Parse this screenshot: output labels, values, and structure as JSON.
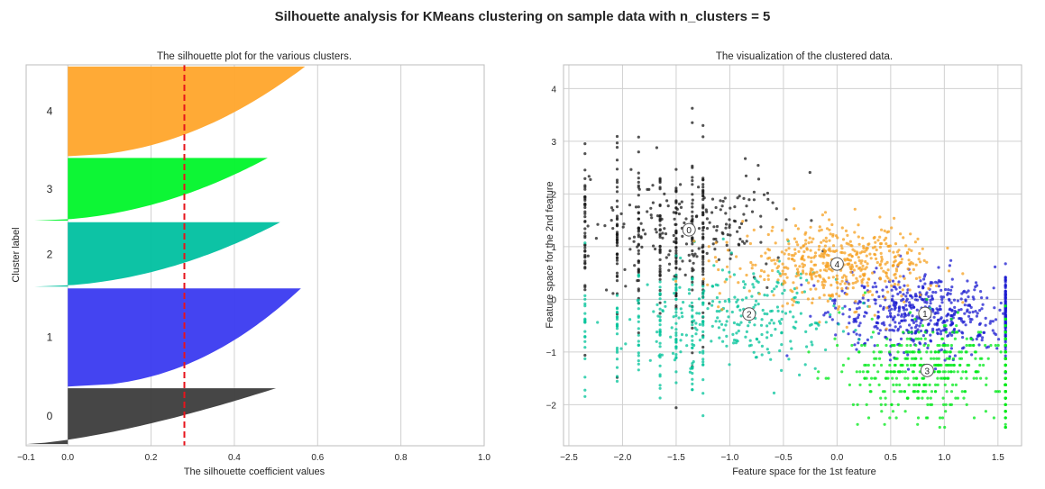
{
  "suptitle": "Silhouette analysis for KMeans clustering on sample data with n_clusters = 5",
  "chart_data": [
    {
      "type": "area",
      "title": "The silhouette plot for the various clusters.",
      "xlabel": "The silhouette coefficient values",
      "ylabel": "Cluster label",
      "xlim": [
        -0.1,
        1.0
      ],
      "xticks": [
        "−0.1",
        "0.0",
        "0.2",
        "0.4",
        "0.6",
        "0.8",
        "1.0"
      ],
      "xtick_values": [
        -0.1,
        0.0,
        0.2,
        0.4,
        0.6,
        0.8,
        1.0
      ],
      "grid": true,
      "average_silhouette_score": 0.28,
      "average_line_color": "#e8141c",
      "clusters": [
        {
          "label": "0",
          "color": "#3c3c3c",
          "y_lower": 10,
          "size": 330,
          "max": 0.5,
          "min": -0.1,
          "shape": 0.7
        },
        {
          "label": "1",
          "color": "#3a3af0",
          "y_lower": 350,
          "size": 580,
          "max": 0.56,
          "min": 0.0,
          "shape": 0.45
        },
        {
          "label": "2",
          "color": "#00c0a0",
          "y_lower": 940,
          "size": 380,
          "max": 0.51,
          "min": -0.08,
          "shape": 0.5
        },
        {
          "label": "3",
          "color": "#00f52a",
          "y_lower": 1330,
          "size": 370,
          "max": 0.48,
          "min": -0.08,
          "shape": 0.5
        },
        {
          "label": "4",
          "color": "#ffa52b",
          "y_lower": 1710,
          "size": 530,
          "max": 0.57,
          "min": 0.0,
          "shape": 0.5
        }
      ],
      "ylim": [
        0,
        2250
      ]
    },
    {
      "type": "scatter",
      "title": "The visualization of the clustered data.",
      "xlabel": "Feature space for the 1st feature",
      "ylabel": "Feature space for the 2nd feature",
      "xlim": [
        -2.55,
        1.72
      ],
      "ylim": [
        -2.78,
        4.45
      ],
      "xticks": [
        "−2.5",
        "−2.0",
        "−1.5",
        "−1.0",
        "−0.5",
        "0.0",
        "0.5",
        "1.0",
        "1.5"
      ],
      "xtick_values": [
        -2.5,
        -2.0,
        -1.5,
        -1.0,
        -0.5,
        0.0,
        0.5,
        1.0,
        1.5
      ],
      "yticks": [
        "−2",
        "−1",
        "0",
        "1",
        "2",
        "3",
        "4"
      ],
      "ytick_values": [
        -2,
        -1,
        0,
        1,
        2,
        3,
        4
      ],
      "grid": true,
      "x_columns": [
        -2.35,
        -2.05,
        -1.85,
        -1.65,
        -1.5,
        -1.35,
        -1.25
      ],
      "clusters": [
        {
          "label": "0",
          "color": "#1a1a1a",
          "center": [
            -1.38,
            1.32
          ],
          "n": 480,
          "spread": [
            0.45,
            0.55
          ]
        },
        {
          "label": "1",
          "color": "#1c1cd0",
          "center": [
            0.82,
            -0.27
          ],
          "n": 620,
          "spread": [
            0.4,
            0.38
          ]
        },
        {
          "label": "2",
          "color": "#00c39a",
          "center": [
            -0.82,
            -0.28
          ],
          "n": 420,
          "spread": [
            0.45,
            0.5
          ]
        },
        {
          "label": "3",
          "color": "#00ea1a",
          "center": [
            0.84,
            -1.35
          ],
          "n": 560,
          "spread": [
            0.4,
            0.45
          ]
        },
        {
          "label": "4",
          "color": "#f5a020",
          "center": [
            0.0,
            0.67
          ],
          "n": 500,
          "spread": [
            0.45,
            0.35
          ]
        }
      ],
      "center_marker_color": "#ffffff",
      "center_label_color": "#000000"
    }
  ]
}
